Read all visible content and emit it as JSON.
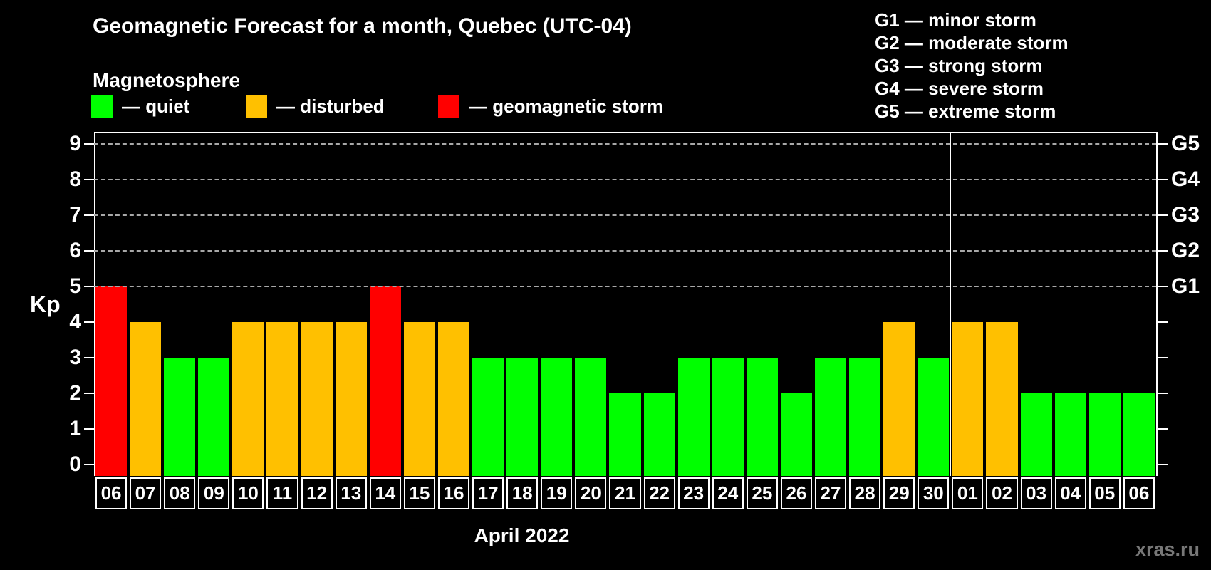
{
  "title": "Geomagnetic Forecast for a month, Quebec (UTC-04)",
  "subtitle": "Magnetosphere",
  "legend": [
    {
      "key": "quiet",
      "label": "— quiet"
    },
    {
      "key": "disturbed",
      "label": "— disturbed"
    },
    {
      "key": "storm",
      "label": "— geomagnetic storm"
    }
  ],
  "storm_levels": [
    "G1 — minor storm",
    "G2 — moderate storm",
    "G3 — strong storm",
    "G4 — severe storm",
    "G5 — extreme storm"
  ],
  "colors": {
    "quiet": "#00ff00",
    "disturbed": "#ffc000",
    "storm": "#ff0000",
    "grid": "#a8a8a8",
    "axis": "#ffffff",
    "watermark": "#777777"
  },
  "axis": {
    "kp_label": "Kp",
    "kp_min": 0,
    "kp_max": 9,
    "g_labels": {
      "5": "G1",
      "6": "G2",
      "7": "G3",
      "8": "G4",
      "9": "G5"
    },
    "gridlines_at": [
      5,
      6,
      7,
      8,
      9
    ]
  },
  "x_axis_label": "April 2022",
  "watermark": "xras.ru",
  "chart_data": {
    "type": "bar",
    "title": "Geomagnetic Forecast for a month, Quebec (UTC-04)",
    "ylabel": "Kp",
    "ylim": [
      0,
      9
    ],
    "grid": "dashed, at Kp 5-9 (G1-G5 storm levels)",
    "month_boundary_index": 25,
    "days": [
      {
        "date": "06",
        "kp": 5,
        "status": "storm"
      },
      {
        "date": "07",
        "kp": 4,
        "status": "disturbed"
      },
      {
        "date": "08",
        "kp": 3,
        "status": "quiet"
      },
      {
        "date": "09",
        "kp": 3,
        "status": "quiet"
      },
      {
        "date": "10",
        "kp": 4,
        "status": "disturbed"
      },
      {
        "date": "11",
        "kp": 4,
        "status": "disturbed"
      },
      {
        "date": "12",
        "kp": 4,
        "status": "disturbed"
      },
      {
        "date": "13",
        "kp": 4,
        "status": "disturbed"
      },
      {
        "date": "14",
        "kp": 5,
        "status": "storm"
      },
      {
        "date": "15",
        "kp": 4,
        "status": "disturbed"
      },
      {
        "date": "16",
        "kp": 4,
        "status": "disturbed"
      },
      {
        "date": "17",
        "kp": 3,
        "status": "quiet"
      },
      {
        "date": "18",
        "kp": 3,
        "status": "quiet"
      },
      {
        "date": "19",
        "kp": 3,
        "status": "quiet"
      },
      {
        "date": "20",
        "kp": 3,
        "status": "quiet"
      },
      {
        "date": "21",
        "kp": 2,
        "status": "quiet"
      },
      {
        "date": "22",
        "kp": 2,
        "status": "quiet"
      },
      {
        "date": "23",
        "kp": 3,
        "status": "quiet"
      },
      {
        "date": "24",
        "kp": 3,
        "status": "quiet"
      },
      {
        "date": "25",
        "kp": 3,
        "status": "quiet"
      },
      {
        "date": "26",
        "kp": 2,
        "status": "quiet"
      },
      {
        "date": "27",
        "kp": 3,
        "status": "quiet"
      },
      {
        "date": "28",
        "kp": 3,
        "status": "quiet"
      },
      {
        "date": "29",
        "kp": 4,
        "status": "disturbed"
      },
      {
        "date": "30",
        "kp": 3,
        "status": "quiet"
      },
      {
        "date": "01",
        "kp": 4,
        "status": "disturbed"
      },
      {
        "date": "02",
        "kp": 4,
        "status": "disturbed"
      },
      {
        "date": "03",
        "kp": 2,
        "status": "quiet"
      },
      {
        "date": "04",
        "kp": 2,
        "status": "quiet"
      },
      {
        "date": "05",
        "kp": 2,
        "status": "quiet"
      },
      {
        "date": "06",
        "kp": 2,
        "status": "quiet"
      }
    ]
  }
}
